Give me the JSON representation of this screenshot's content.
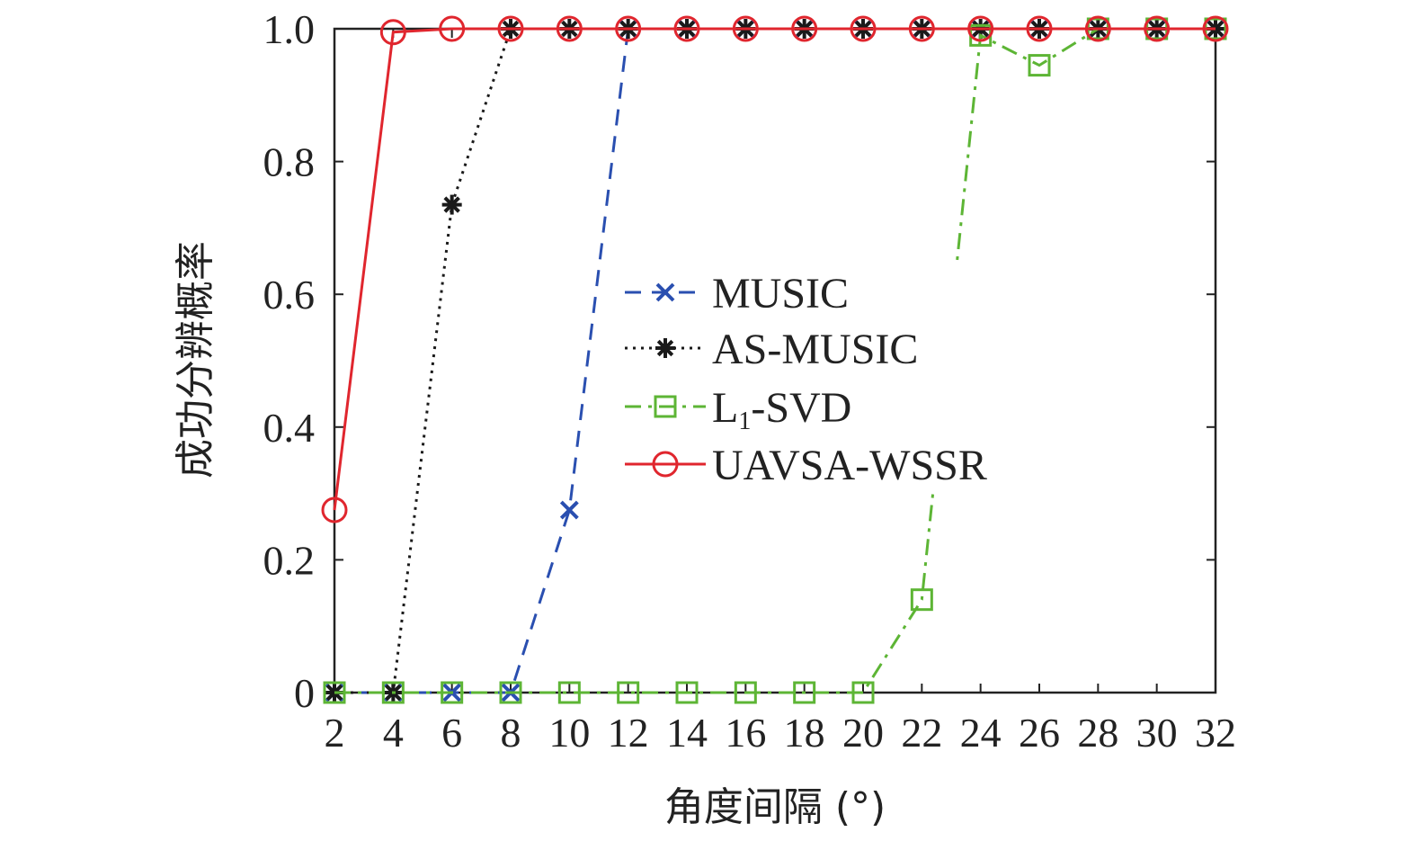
{
  "chart_data": {
    "type": "line",
    "title": "",
    "xlabel": "角度间隔 (°)",
    "ylabel": "成功分辨概率",
    "xlim": [
      2,
      32
    ],
    "ylim": [
      0,
      1
    ],
    "x_ticks": [
      "2",
      "4",
      "6",
      "8",
      "10",
      "12",
      "14",
      "16",
      "18",
      "20",
      "22",
      "24",
      "26",
      "28",
      "30",
      "32"
    ],
    "y_ticks": [
      "0",
      "0.2",
      "0.4",
      "0.6",
      "0.8",
      "1.0"
    ],
    "grid": false,
    "legend_position": "center",
    "x": [
      2,
      4,
      6,
      8,
      10,
      12,
      14,
      16,
      18,
      20,
      22,
      24,
      26,
      28,
      30,
      32
    ],
    "series": [
      {
        "name": "MUSIC",
        "color": "#2a4fb0",
        "dash": "dashed",
        "marker": "x",
        "values": [
          0,
          0,
          0,
          0,
          0.275,
          1,
          1,
          1,
          1,
          1,
          1,
          1,
          1,
          1,
          1,
          1
        ]
      },
      {
        "name": "AS-MUSIC",
        "color": "#1a1a1a",
        "dash": "dotted",
        "marker": "asterisk",
        "values": [
          0,
          0,
          0.735,
          1,
          1,
          1,
          1,
          1,
          1,
          1,
          1,
          1,
          1,
          1,
          1,
          1
        ]
      },
      {
        "name_main": "L",
        "name_sub": "1",
        "name_rest": "-SVD",
        "color": "#5db535",
        "dash": "dashdot",
        "marker": "square",
        "values": [
          0,
          0,
          0,
          0,
          0,
          0,
          0,
          0,
          0,
          0,
          0.14,
          0.99,
          0.945,
          1,
          1,
          1
        ]
      },
      {
        "name": "UAVSA-WSSR",
        "color": "#e0262e",
        "dash": "solid",
        "marker": "circle",
        "values": [
          0.275,
          0.995,
          1,
          1,
          1,
          1,
          1,
          1,
          1,
          1,
          1,
          1,
          1,
          1,
          1,
          1
        ]
      }
    ]
  }
}
